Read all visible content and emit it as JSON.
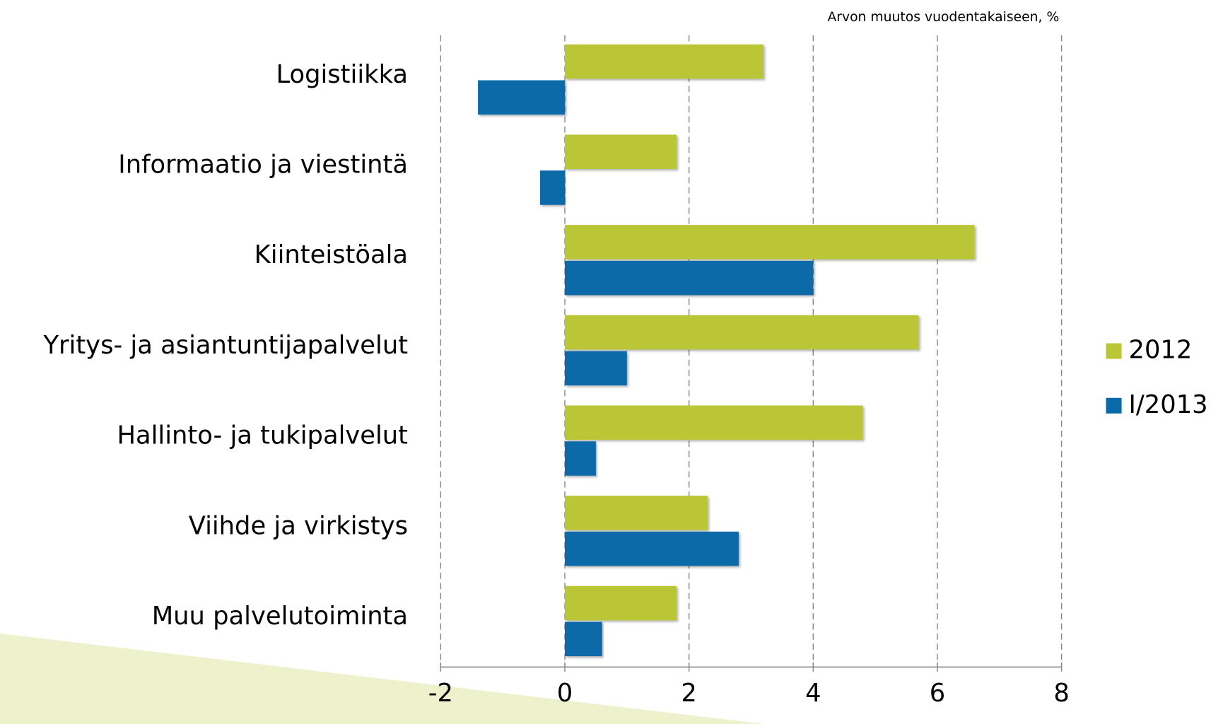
{
  "chart_data": {
    "type": "hbar",
    "axis_title": "Arvon muutos vuodentakaiseen, %",
    "categories": [
      "Logistiikka",
      "Informaatio ja viestintä",
      "Kiinteistöala",
      "Yritys- ja asiantuntijapalvelut",
      "Hallinto- ja tukipalvelut",
      "Viihde ja virkistys",
      "Muu palvelutoiminta"
    ],
    "series": [
      {
        "name": "2012",
        "color": "#bac634",
        "values": [
          3.2,
          1.8,
          6.6,
          5.7,
          4.8,
          2.3,
          1.8
        ]
      },
      {
        "name": "I/2013",
        "color": "#0a6aa9",
        "values": [
          -1.4,
          -0.4,
          4.0,
          1.0,
          0.5,
          2.8,
          0.6
        ]
      }
    ],
    "xlim": [
      -2,
      8
    ],
    "xticks": [
      -2,
      0,
      2,
      4,
      6,
      8
    ],
    "grid": true,
    "legend": "right"
  }
}
